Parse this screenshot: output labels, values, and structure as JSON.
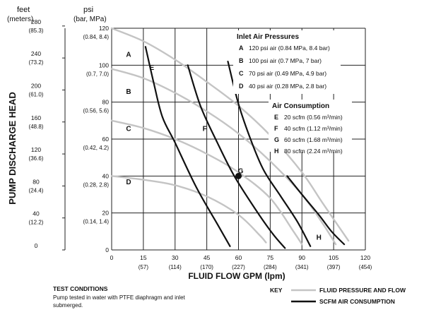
{
  "chart_data": {
    "type": "line",
    "xlabel": "FLUID FLOW GPM (lpm)",
    "ylabel": "PUMP DISCHARGE HEAD",
    "xlim": [
      0,
      120
    ],
    "ylim": [
      0,
      120
    ],
    "grid": true,
    "x_ticks": [
      {
        "value": 0,
        "label": "0",
        "sub": ""
      },
      {
        "value": 15,
        "label": "15",
        "sub": "(57)"
      },
      {
        "value": 30,
        "label": "30",
        "sub": "(114)"
      },
      {
        "value": 45,
        "label": "45",
        "sub": "(170)"
      },
      {
        "value": 60,
        "label": "60",
        "sub": "(227)"
      },
      {
        "value": 75,
        "label": "75",
        "sub": "(284)"
      },
      {
        "value": 90,
        "label": "90",
        "sub": "(341)"
      },
      {
        "value": 105,
        "label": "105",
        "sub": "(397)"
      },
      {
        "value": 120,
        "label": "120",
        "sub": "(454)"
      }
    ],
    "psi_axis": {
      "title": "psi",
      "subtitle": "(bar, MPa)",
      "ticks": [
        {
          "value": 0,
          "label": "0",
          "sub": ""
        },
        {
          "value": 20,
          "label": "20",
          "sub": "(0.14, 1.4)"
        },
        {
          "value": 40,
          "label": "40",
          "sub": "(0.28, 2.8)"
        },
        {
          "value": 60,
          "label": "60",
          "sub": "(0.42, 4.2)"
        },
        {
          "value": 80,
          "label": "80",
          "sub": "(0.56, 5.6)"
        },
        {
          "value": 100,
          "label": "100",
          "sub": "(0.7, 7.0)"
        },
        {
          "value": 120,
          "label": "120",
          "sub": "(0.84, 8.4)"
        }
      ]
    },
    "feet_axis": {
      "title": "feet",
      "subtitle": "(meters)",
      "ticks": [
        {
          "feet": 0,
          "label": "0",
          "sub": ""
        },
        {
          "feet": 40,
          "label": "40",
          "sub": "(12.2)"
        },
        {
          "feet": 80,
          "label": "80",
          "sub": "(24.4)"
        },
        {
          "feet": 120,
          "label": "120",
          "sub": "(36.6)"
        },
        {
          "feet": 160,
          "label": "160",
          "sub": "(48.8)"
        },
        {
          "feet": 200,
          "label": "200",
          "sub": "(61.0)"
        },
        {
          "feet": 240,
          "label": "240",
          "sub": "(73.2)"
        },
        {
          "feet": 280,
          "label": "280",
          "sub": "(85.3)"
        }
      ]
    },
    "pressure_series": [
      {
        "name": "A",
        "label": "120 psi air (0.84 MPa, 8.4 bar)",
        "label_at": [
          8,
          106
        ],
        "points": [
          [
            0,
            120
          ],
          [
            15,
            113
          ],
          [
            30,
            103
          ],
          [
            45,
            91
          ],
          [
            60,
            78
          ],
          [
            75,
            62
          ],
          [
            90,
            42
          ],
          [
            100,
            25
          ],
          [
            112,
            5
          ]
        ]
      },
      {
        "name": "B",
        "label": "100 psi air (0.7 MPa, 7 bar)",
        "label_at": [
          8,
          86
        ],
        "points": [
          [
            0,
            98
          ],
          [
            15,
            93
          ],
          [
            30,
            85
          ],
          [
            45,
            75
          ],
          [
            60,
            63
          ],
          [
            75,
            48
          ],
          [
            90,
            30
          ],
          [
            100,
            14
          ],
          [
            106,
            3
          ]
        ]
      },
      {
        "name": "C",
        "label": "70 psi air (0.49 MPa, 4.9 bar)",
        "label_at": [
          8,
          66
        ],
        "points": [
          [
            0,
            70
          ],
          [
            15,
            66
          ],
          [
            30,
            60
          ],
          [
            45,
            52
          ],
          [
            60,
            42
          ],
          [
            75,
            28
          ],
          [
            86,
            10
          ],
          [
            90,
            3
          ]
        ]
      },
      {
        "name": "D",
        "label": "40 psi air (0.28 MPa, 2.8 bar)",
        "label_at": [
          8,
          37
        ],
        "points": [
          [
            0,
            40
          ],
          [
            15,
            38
          ],
          [
            30,
            35
          ],
          [
            45,
            29
          ],
          [
            60,
            19
          ],
          [
            70,
            8
          ],
          [
            73,
            4
          ]
        ]
      }
    ],
    "air_series": [
      {
        "name": "E",
        "label": "20 scfm (0.56 m³/min)",
        "label_at": [
          19,
          99
        ],
        "points": [
          [
            16,
            110
          ],
          [
            20,
            90
          ],
          [
            24,
            72
          ],
          [
            30,
            58
          ],
          [
            40,
            34
          ],
          [
            50,
            14
          ],
          [
            56,
            2
          ]
        ]
      },
      {
        "name": "F",
        "label": "40 scfm (1.12 m³/min)",
        "label_at": [
          44,
          66
        ],
        "points": [
          [
            36,
            100
          ],
          [
            42,
            78
          ],
          [
            50,
            58
          ],
          [
            58,
            40
          ],
          [
            68,
            22
          ],
          [
            76,
            9
          ],
          [
            82,
            1
          ]
        ]
      },
      {
        "name": "G",
        "label": "60 scfm (1.68 m³/min)",
        "label_at": [
          61,
          43
        ],
        "points": [
          [
            55,
            102
          ],
          [
            60,
            79
          ],
          [
            66,
            59
          ],
          [
            72,
            43
          ],
          [
            80,
            29
          ],
          [
            88,
            15
          ],
          [
            94,
            2
          ]
        ]
      },
      {
        "name": "H",
        "label": "80 scfm (2.24 m³/min)",
        "label_at": [
          98,
          7
        ],
        "points": [
          [
            83,
            40
          ],
          [
            90,
            30
          ],
          [
            98,
            19
          ],
          [
            104,
            10
          ],
          [
            110,
            3
          ]
        ]
      }
    ],
    "marker": {
      "x": 60,
      "y": 40
    },
    "legend": {
      "inlet_title": "Inlet Air Pressures",
      "air_title": "Air Consumption"
    }
  },
  "footer": {
    "test_title": "TEST CONDITIONS",
    "test_text_1": "Pump tested in water with PTFE diaphragm and inlet",
    "test_text_2": "submerged.",
    "key_title": "KEY",
    "key_pressure": "FLUID PRESSURE AND FLOW",
    "key_air": "SCFM AIR CONSUMPTION",
    "pressure_color": "#c4c4c4",
    "air_color": "#111111"
  }
}
